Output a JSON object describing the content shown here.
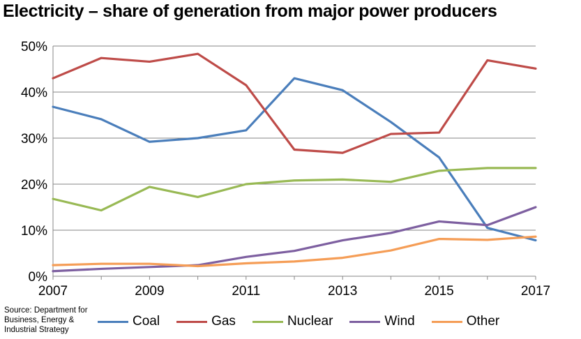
{
  "title": "Electricity – share of generation from major power producers",
  "source_text": "Source: Department for Business, Energy & Industrial Strategy",
  "chart_data": {
    "type": "line",
    "title": "Electricity – share of generation from major power producers",
    "x": [
      2007,
      2008,
      2009,
      2010,
      2011,
      2012,
      2013,
      2014,
      2015,
      2016,
      2017
    ],
    "xticks": [
      "2007",
      "2009",
      "2011",
      "2013",
      "2015",
      "2017"
    ],
    "yticks": [
      "0%",
      "10%",
      "20%",
      "30%",
      "40%",
      "50%"
    ],
    "ylim": [
      0,
      50
    ],
    "xlim": [
      2007,
      2017
    ],
    "grid": true,
    "legend_position": "bottom",
    "series": [
      {
        "name": "Coal",
        "color": "#4a7ebb",
        "values": [
          36.8,
          34.1,
          29.2,
          30.0,
          31.7,
          43.0,
          40.4,
          33.5,
          25.8,
          10.5,
          7.8
        ]
      },
      {
        "name": "Gas",
        "color": "#be4b48",
        "values": [
          43.0,
          47.4,
          46.6,
          48.3,
          41.5,
          27.5,
          26.8,
          30.9,
          31.2,
          46.9,
          45.1
        ]
      },
      {
        "name": "Nuclear",
        "color": "#98b954",
        "values": [
          16.8,
          14.3,
          19.4,
          17.2,
          20.0,
          20.8,
          21.0,
          20.5,
          22.9,
          23.5,
          23.5
        ]
      },
      {
        "name": "Wind",
        "color": "#7d5fa0",
        "values": [
          1.1,
          1.6,
          2.0,
          2.4,
          4.2,
          5.5,
          7.8,
          9.4,
          11.9,
          11.1,
          15.0
        ]
      },
      {
        "name": "Other",
        "color": "#f59d56",
        "values": [
          2.4,
          2.7,
          2.7,
          2.2,
          2.8,
          3.2,
          4.0,
          5.6,
          8.1,
          7.9,
          8.6
        ]
      }
    ]
  }
}
